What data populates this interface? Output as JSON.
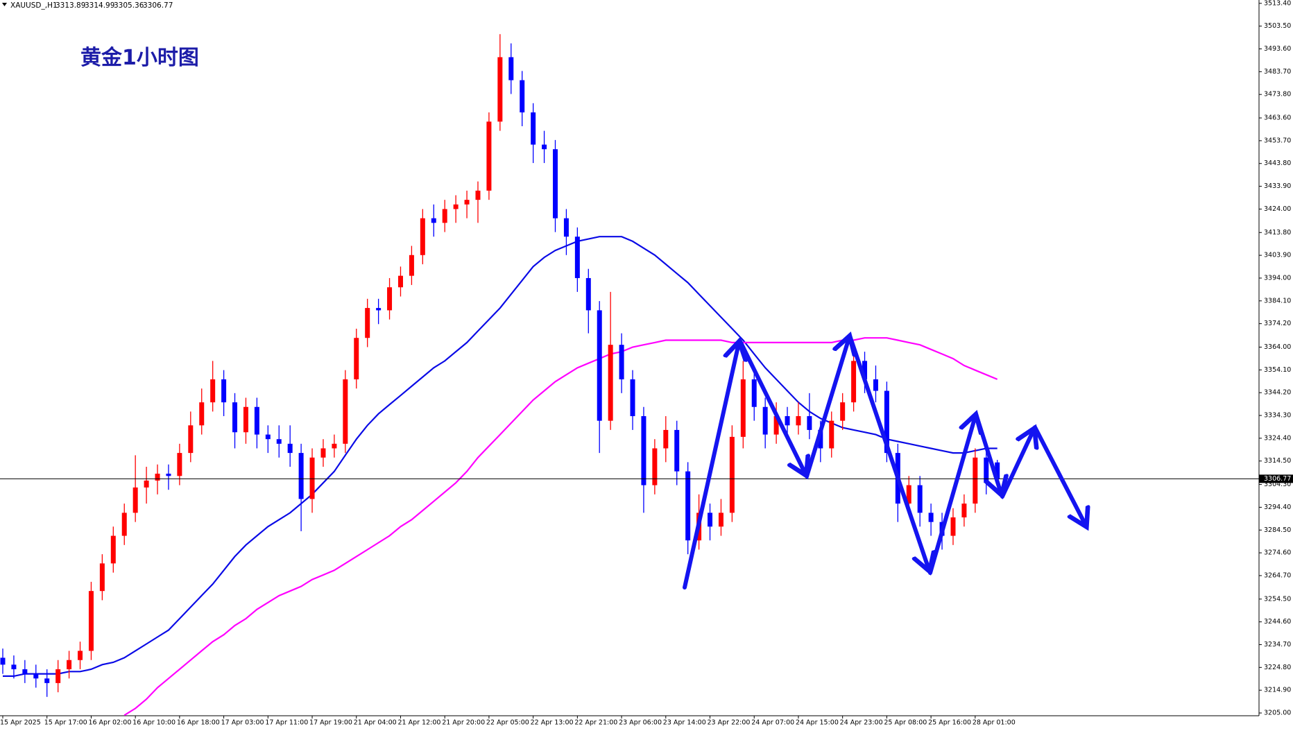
{
  "chart_data": {
    "type": "candlestick",
    "title": "黄金1小时图",
    "symbol": "XAUUSD_,H1",
    "header_ohlc": [
      3313.89,
      3314.99,
      3305.36,
      3306.77
    ],
    "last_price": 3306.77,
    "price_line_color": "#000000",
    "up_color": "#ff0000",
    "down_color": "#0000ff",
    "grid": false,
    "ylim": [
      3203.8,
      3514.85
    ],
    "yticks": [
      {
        "value": 3513.4,
        "label": "3513.40"
      },
      {
        "value": 3503.5,
        "label": "3503.50"
      },
      {
        "value": 3493.6,
        "label": "3493.60"
      },
      {
        "value": 3483.7,
        "label": "3483.70"
      },
      {
        "value": 3473.8,
        "label": "3473.80"
      },
      {
        "value": 3463.6,
        "label": "3463.60"
      },
      {
        "value": 3453.7,
        "label": "3453.70"
      },
      {
        "value": 3443.8,
        "label": "3443.80"
      },
      {
        "value": 3433.9,
        "label": "3433.90"
      },
      {
        "value": 3424,
        "label": "3424.00"
      },
      {
        "value": 3413.8,
        "label": "3413.80"
      },
      {
        "value": 3403.9,
        "label": "3403.90"
      },
      {
        "value": 3394,
        "label": "3394.00"
      },
      {
        "value": 3384.1,
        "label": "3384.10"
      },
      {
        "value": 3374.2,
        "label": "3374.20"
      },
      {
        "value": 3364,
        "label": "3364.00"
      },
      {
        "value": 3354.1,
        "label": "3354.10"
      },
      {
        "value": 3344.2,
        "label": "3344.20"
      },
      {
        "value": 3334.3,
        "label": "3334.30"
      },
      {
        "value": 3324.4,
        "label": "3324.40"
      },
      {
        "value": 3314.5,
        "label": "3314.50"
      },
      {
        "value": 3304.3,
        "label": "3304.30"
      },
      {
        "value": 3294.4,
        "label": "3294.40"
      },
      {
        "value": 3284.5,
        "label": "3284.50"
      },
      {
        "value": 3274.6,
        "label": "3274.60"
      },
      {
        "value": 3264.7,
        "label": "3264.70"
      },
      {
        "value": 3254.5,
        "label": "3254.50"
      },
      {
        "value": 3244.6,
        "label": "3244.60"
      },
      {
        "value": 3234.7,
        "label": "3234.70"
      },
      {
        "value": 3224.8,
        "label": "3224.80"
      },
      {
        "value": 3214.9,
        "label": "3214.90"
      },
      {
        "value": 3205,
        "label": "3205.00"
      }
    ],
    "categories": [
      "15 Apr 2025",
      null,
      null,
      null,
      "15 Apr 17:00",
      null,
      null,
      null,
      "16 Apr 02:00",
      null,
      null,
      null,
      "16 Apr 10:00",
      null,
      null,
      null,
      "16 Apr 18:00",
      null,
      null,
      null,
      "17 Apr 03:00",
      null,
      null,
      null,
      "17 Apr 11:00",
      null,
      null,
      null,
      "17 Apr 19:00",
      null,
      null,
      null,
      "21 Apr 04:00",
      null,
      null,
      null,
      "21 Apr 12:00",
      null,
      null,
      null,
      "21 Apr 20:00",
      null,
      null,
      null,
      "22 Apr 05:00",
      null,
      null,
      null,
      "22 Apr 13:00",
      null,
      null,
      null,
      "22 Apr 21:00",
      null,
      null,
      null,
      "23 Apr 06:00",
      null,
      null,
      null,
      "23 Apr 14:00",
      null,
      null,
      null,
      "23 Apr 22:00",
      null,
      null,
      null,
      "24 Apr 07:00",
      null,
      null,
      null,
      "24 Apr 15:00",
      null,
      null,
      null,
      "24 Apr 23:00",
      null,
      null,
      null,
      "25 Apr 08:00",
      null,
      null,
      null,
      "25 Apr 16:00",
      null,
      null,
      null,
      "28 Apr 01:00",
      null,
      null
    ],
    "open": [
      3229,
      3226,
      3224,
      3222,
      3220,
      3218,
      3224,
      3228,
      3232,
      3258,
      3270,
      3282,
      3292,
      3303,
      3306,
      3309,
      3308,
      3318,
      3330,
      3340,
      3350,
      3340,
      3327,
      3338,
      3326,
      3324,
      3322,
      3318,
      3298,
      3316,
      3320,
      3322,
      3350,
      3368,
      3381,
      3380,
      3390,
      3395,
      3404,
      3420,
      3418,
      3424,
      3426,
      3428,
      3432,
      3462,
      3490,
      3480,
      3466,
      3452,
      3450,
      3420,
      3412,
      3394,
      3380,
      3332,
      3365,
      3350,
      3334,
      3304,
      3320,
      3328,
      3310,
      3280,
      3292,
      3286,
      3292,
      3325,
      3350,
      3338,
      3326,
      3334,
      3330,
      3334,
      3328,
      3320,
      3332,
      3340,
      3358,
      3350,
      3345,
      3318,
      3296,
      3304,
      3292,
      3288,
      3282,
      3290,
      3296,
      3316,
      3313.89
    ],
    "high": [
      3233,
      3230,
      3228,
      3226,
      3224,
      3228,
      3232,
      3236,
      3262,
      3274,
      3286,
      3296,
      3317,
      3312,
      3313,
      3313,
      3322,
      3336,
      3346,
      3358,
      3354,
      3344,
      3342,
      3342,
      3330,
      3330,
      3330,
      3322,
      3320,
      3324,
      3326,
      3354,
      3372,
      3385,
      3385,
      3394,
      3399,
      3408,
      3424,
      3426,
      3428,
      3430,
      3432,
      3436,
      3466,
      3500,
      3496,
      3484,
      3470,
      3458,
      3454,
      3424,
      3416,
      3398,
      3384,
      3388,
      3370,
      3354,
      3338,
      3324,
      3334,
      3332,
      3314,
      3300,
      3296,
      3298,
      3330,
      3358,
      3354,
      3342,
      3340,
      3338,
      3340,
      3344,
      3332,
      3336,
      3344,
      3364,
      3362,
      3356,
      3349,
      3322,
      3308,
      3308,
      3296,
      3292,
      3294,
      3300,
      3320,
      3320,
      3314.99
    ],
    "low": [
      3222,
      3220,
      3218,
      3216,
      3212,
      3214,
      3220,
      3224,
      3228,
      3254,
      3266,
      3278,
      3288,
      3296,
      3300,
      3302,
      3304,
      3314,
      3326,
      3336,
      3334,
      3320,
      3322,
      3320,
      3318,
      3316,
      3312,
      3284,
      3292,
      3312,
      3316,
      3318,
      3346,
      3364,
      3374,
      3376,
      3386,
      3391,
      3400,
      3412,
      3414,
      3418,
      3420,
      3418,
      3428,
      3458,
      3474,
      3460,
      3444,
      3444,
      3414,
      3404,
      3388,
      3370,
      3318,
      3328,
      3344,
      3328,
      3292,
      3300,
      3314,
      3304,
      3274,
      3276,
      3280,
      3282,
      3288,
      3320,
      3332,
      3320,
      3322,
      3324,
      3326,
      3324,
      3314,
      3316,
      3328,
      3336,
      3344,
      3340,
      3314,
      3288,
      3292,
      3286,
      3282,
      3276,
      3278,
      3286,
      3292,
      3300,
      3305.36
    ],
    "close": [
      3226,
      3224,
      3222,
      3220,
      3218,
      3224,
      3228,
      3232,
      3258,
      3270,
      3282,
      3292,
      3303,
      3306,
      3309,
      3308,
      3318,
      3330,
      3340,
      3350,
      3340,
      3327,
      3338,
      3326,
      3324,
      3322,
      3318,
      3298,
      3316,
      3320,
      3322,
      3350,
      3368,
      3381,
      3380,
      3390,
      3395,
      3404,
      3420,
      3418,
      3424,
      3426,
      3428,
      3432,
      3462,
      3490,
      3480,
      3466,
      3452,
      3450,
      3420,
      3412,
      3394,
      3380,
      3332,
      3365,
      3350,
      3334,
      3304,
      3320,
      3328,
      3310,
      3280,
      3292,
      3286,
      3292,
      3325,
      3350,
      3338,
      3326,
      3334,
      3330,
      3334,
      3328,
      3320,
      3332,
      3340,
      3358,
      3350,
      3345,
      3318,
      3296,
      3304,
      3292,
      3288,
      3282,
      3290,
      3296,
      3316,
      3305,
      3306.77
    ],
    "series": [
      {
        "color": "#0a0ae6",
        "values": [
          3221,
          3221,
          3222,
          3222,
          3222,
          3222,
          3223,
          3223,
          3224,
          3226,
          3227,
          3229,
          3232,
          3235,
          3238,
          3241,
          3246,
          3251,
          3256,
          3261,
          3267,
          3273,
          3278,
          3282,
          3286,
          3289,
          3292,
          3296,
          3300,
          3305,
          3310,
          3317,
          3324,
          3330,
          3335,
          3339,
          3343,
          3347,
          3351,
          3355,
          3358,
          3362,
          3366,
          3371,
          3376,
          3381,
          3387,
          3393,
          3399,
          3403,
          3406,
          3408,
          3410,
          3411,
          3412,
          3412,
          3412,
          3410,
          3407,
          3404,
          3400,
          3396,
          3392,
          3387,
          3382,
          3377,
          3372,
          3367,
          3361,
          3355,
          3350,
          3345,
          3340,
          3336,
          3333,
          3331,
          3329,
          3328,
          3327,
          3326,
          3324,
          3323,
          3322,
          3321,
          3320,
          3319,
          3318,
          3318,
          3319,
          3320,
          3320
        ]
      },
      {
        "color": "#ff00ff",
        "values": [
          null,
          null,
          null,
          null,
          null,
          null,
          null,
          null,
          null,
          null,
          null,
          3204,
          3207,
          3211,
          3216,
          3220,
          3224,
          3228,
          3232,
          3236,
          3239,
          3243,
          3246,
          3250,
          3253,
          3256,
          3258,
          3260,
          3263,
          3265,
          3267,
          3270,
          3273,
          3276,
          3279,
          3282,
          3286,
          3289,
          3293,
          3297,
          3301,
          3305,
          3310,
          3316,
          3321,
          3326,
          3331,
          3336,
          3341,
          3345,
          3349,
          3352,
          3355,
          3357,
          3359,
          3361,
          3362,
          3364,
          3365,
          3366,
          3367,
          3367,
          3367,
          3367,
          3367,
          3367,
          3366,
          3366,
          3366,
          3366,
          3366,
          3366,
          3366,
          3366,
          3366,
          3366,
          3367,
          3367,
          3368,
          3368,
          3368,
          3367,
          3366,
          3365,
          3363,
          3361,
          3359,
          3356,
          3354,
          3352,
          3350
        ]
      }
    ]
  }
}
